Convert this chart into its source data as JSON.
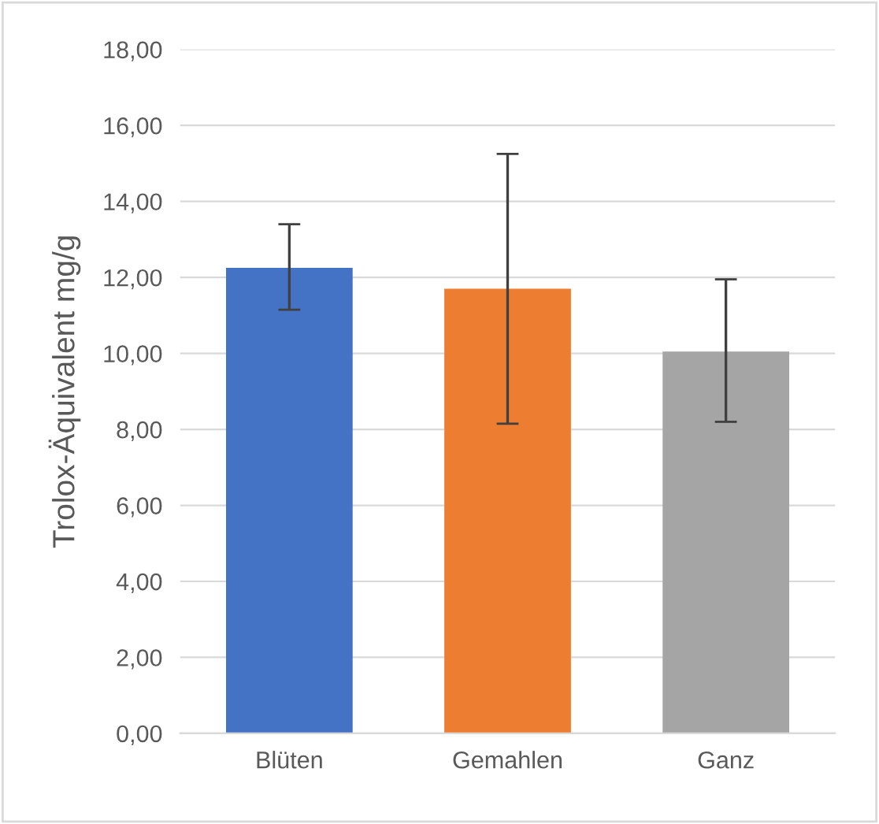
{
  "chart_data": {
    "type": "bar",
    "ylabel": "Trolox-Äquivalent mg/g",
    "categories": [
      "Blüten",
      "Gemahlen",
      "Ganz"
    ],
    "values": [
      12.25,
      11.7,
      10.05
    ],
    "colors": [
      "#4472c4",
      "#ed7d31",
      "#a5a5a5"
    ],
    "errors": [
      [
        11.15,
        13.4
      ],
      [
        8.15,
        15.25
      ],
      [
        8.2,
        11.95
      ]
    ],
    "ylim": [
      0,
      18
    ],
    "yticks": [
      {
        "value": 0,
        "label": "0,00"
      },
      {
        "value": 2,
        "label": "2,00"
      },
      {
        "value": 4,
        "label": "4,00"
      },
      {
        "value": 6,
        "label": "6,00"
      },
      {
        "value": 8,
        "label": "8,00"
      },
      {
        "value": 10,
        "label": "10,00"
      },
      {
        "value": 12,
        "label": "12,00"
      },
      {
        "value": 14,
        "label": "14,00"
      },
      {
        "value": 16,
        "label": "16,00"
      },
      {
        "value": 18,
        "label": "18,00"
      }
    ],
    "grid": "y"
  }
}
